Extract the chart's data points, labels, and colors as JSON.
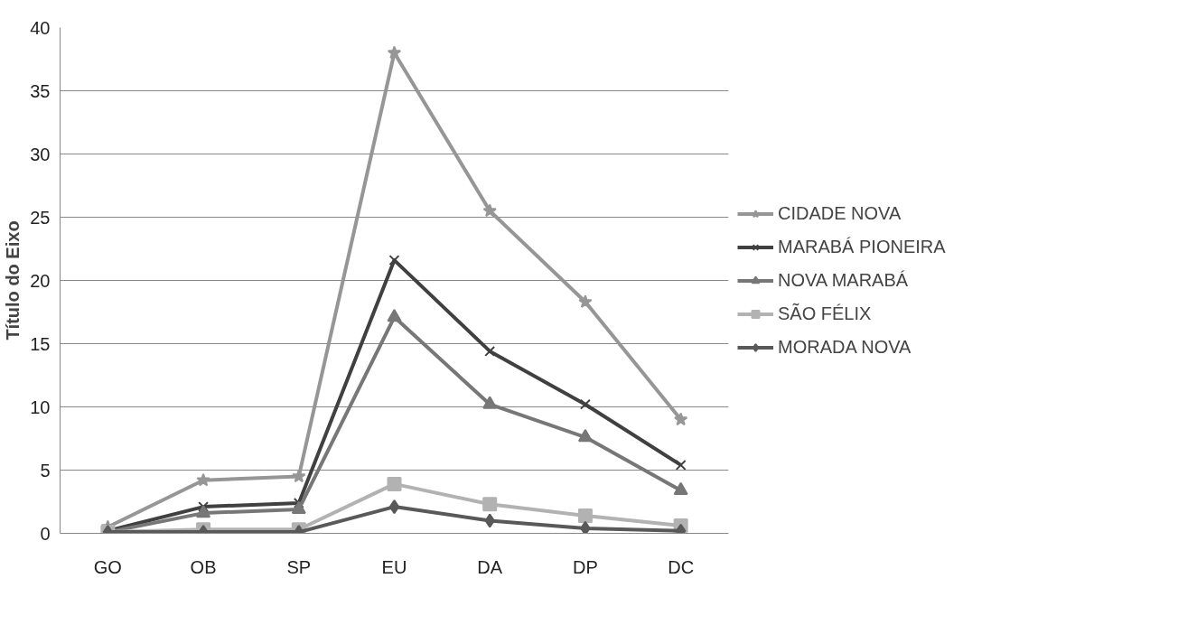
{
  "chart_data": {
    "type": "line",
    "ylabel": "Título do Eixo",
    "categories": [
      "GO",
      "OB",
      "SP",
      "EU",
      "DA",
      "DP",
      "DC"
    ],
    "series": [
      {
        "name": "CIDADE NOVA",
        "color": "#969696",
        "marker": "star",
        "values": [
          0.5,
          4.2,
          4.5,
          38,
          25.5,
          18.3,
          9
        ]
      },
      {
        "name": "MARABÁ PIONEIRA",
        "color": "#404040",
        "marker": "cross",
        "values": [
          0.2,
          2.1,
          2.4,
          21.6,
          14.4,
          10.2,
          5.4
        ]
      },
      {
        "name": "NOVA MARABÁ",
        "color": "#777777",
        "marker": "triangle",
        "values": [
          0.1,
          1.6,
          1.9,
          17.1,
          10.2,
          7.6,
          3.4
        ]
      },
      {
        "name": "SÃO FÉLIX",
        "color": "#b2b2b2",
        "marker": "square",
        "values": [
          0.1,
          0.3,
          0.3,
          3.9,
          2.3,
          1.4,
          0.6
        ]
      },
      {
        "name": "MORADA NOVA",
        "color": "#595959",
        "marker": "diamond",
        "values": [
          0.1,
          0.1,
          0.1,
          2.1,
          1.0,
          0.4,
          0.2
        ]
      }
    ],
    "ylim": [
      0,
      40
    ],
    "yticks": [
      0,
      5,
      10,
      15,
      20,
      25,
      30,
      35,
      40
    ],
    "grid": "y",
    "legend": "right",
    "line_style": "solid"
  }
}
